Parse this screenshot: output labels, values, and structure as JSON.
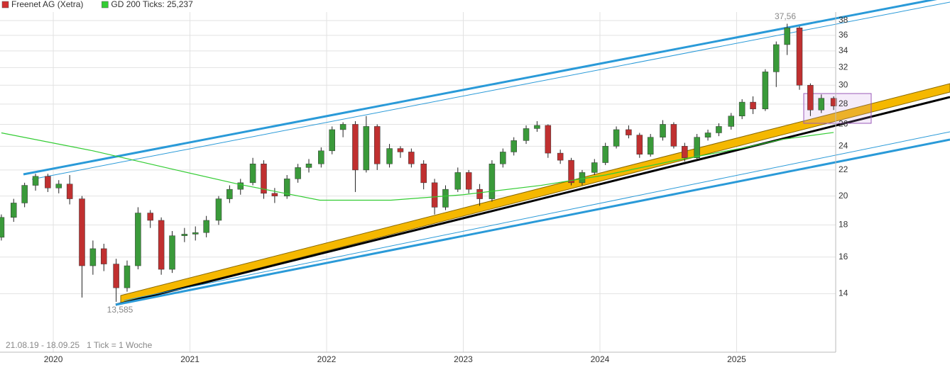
{
  "chart_data": {
    "type": "candlestick",
    "log_scale": true,
    "grid": true,
    "up_color": "#3a9a3a",
    "down_color": "#c03030",
    "wick_color": "#222222",
    "xlim": [
      2019.61,
      2025.725
    ],
    "xticks": [
      2020,
      2021,
      2022,
      2023,
      2024,
      2025
    ],
    "ylim": [
      11.3,
      39.2
    ],
    "yticks": [
      14,
      16,
      18,
      20,
      22,
      24,
      26,
      28,
      30,
      32,
      34,
      36,
      38
    ],
    "annotations": [
      "37,56",
      "13,585",
      "21.08.19 - 18.09.25   1 Tick = 1 Woche"
    ],
    "series": [
      {
        "name": "Freenet AG (Xetra)",
        "color": "#d03030",
        "x": [
          2019.62,
          2019.71,
          2019.79,
          2019.87,
          2019.96,
          2020.04,
          2020.12,
          2020.21,
          2020.29,
          2020.37,
          2020.46,
          2020.54,
          2020.62,
          2020.71,
          2020.79,
          2020.87,
          2020.96,
          2021.04,
          2021.12,
          2021.21,
          2021.29,
          2021.37,
          2021.46,
          2021.54,
          2021.62,
          2021.71,
          2021.79,
          2021.87,
          2021.96,
          2022.04,
          2022.12,
          2022.21,
          2022.29,
          2022.37,
          2022.46,
          2022.54,
          2022.62,
          2022.71,
          2022.79,
          2022.87,
          2022.96,
          2023.04,
          2023.12,
          2023.21,
          2023.29,
          2023.37,
          2023.46,
          2023.54,
          2023.62,
          2023.71,
          2023.79,
          2023.87,
          2023.96,
          2024.04,
          2024.12,
          2024.21,
          2024.29,
          2024.37,
          2024.46,
          2024.54,
          2024.62,
          2024.71,
          2024.79,
          2024.87,
          2024.96,
          2025.04,
          2025.12,
          2025.21,
          2025.29,
          2025.37,
          2025.46,
          2025.54,
          2025.62,
          2025.71
        ],
        "values": [
          [
            17.2,
            18.7,
            17.0,
            18.5
          ],
          [
            18.5,
            19.8,
            18.2,
            19.5
          ],
          [
            19.5,
            21.0,
            19.2,
            20.8
          ],
          [
            20.8,
            21.7,
            20.4,
            21.5
          ],
          [
            21.5,
            21.7,
            20.3,
            20.6
          ],
          [
            20.6,
            21.2,
            20.2,
            20.9
          ],
          [
            20.9,
            21.6,
            19.4,
            19.8
          ],
          [
            19.8,
            20.0,
            13.8,
            15.5
          ],
          [
            15.5,
            17.0,
            15.0,
            16.5
          ],
          [
            16.5,
            16.8,
            15.2,
            15.6
          ],
          [
            15.6,
            15.9,
            13.585,
            14.3
          ],
          [
            14.3,
            15.8,
            14.1,
            15.5
          ],
          [
            15.5,
            19.2,
            15.3,
            18.8
          ],
          [
            18.8,
            19.0,
            17.8,
            18.3
          ],
          [
            18.3,
            18.5,
            15.0,
            15.3
          ],
          [
            15.3,
            17.6,
            15.1,
            17.3
          ],
          [
            17.3,
            17.8,
            16.9,
            17.4
          ],
          [
            17.4,
            17.9,
            17.0,
            17.5
          ],
          [
            17.5,
            18.6,
            17.2,
            18.3
          ],
          [
            18.3,
            20.0,
            18.0,
            19.8
          ],
          [
            19.8,
            20.8,
            19.5,
            20.5
          ],
          [
            20.5,
            21.3,
            20.1,
            21.0
          ],
          [
            21.0,
            23.0,
            20.8,
            22.5
          ],
          [
            22.5,
            22.8,
            19.8,
            20.2
          ],
          [
            20.2,
            20.6,
            19.5,
            20.0
          ],
          [
            20.0,
            21.6,
            19.8,
            21.3
          ],
          [
            21.3,
            22.5,
            21.0,
            22.2
          ],
          [
            22.2,
            22.9,
            21.8,
            22.5
          ],
          [
            22.5,
            23.9,
            22.2,
            23.6
          ],
          [
            23.6,
            25.8,
            23.3,
            25.5
          ],
          [
            25.5,
            26.2,
            24.8,
            26.0
          ],
          [
            26.0,
            26.3,
            20.3,
            22.0
          ],
          [
            22.0,
            26.8,
            21.8,
            25.8
          ],
          [
            25.8,
            26.0,
            22.0,
            22.5
          ],
          [
            22.5,
            24.2,
            22.2,
            23.8
          ],
          [
            23.8,
            24.0,
            23.0,
            23.5
          ],
          [
            23.5,
            23.8,
            22.2,
            22.5
          ],
          [
            22.5,
            22.8,
            20.5,
            21.0
          ],
          [
            21.0,
            21.3,
            18.7,
            19.2
          ],
          [
            19.2,
            20.8,
            19.0,
            20.5
          ],
          [
            20.5,
            22.2,
            20.3,
            21.8
          ],
          [
            21.8,
            22.0,
            20.2,
            20.5
          ],
          [
            20.5,
            20.9,
            19.3,
            19.8
          ],
          [
            19.8,
            22.8,
            19.6,
            22.5
          ],
          [
            22.5,
            23.8,
            22.2,
            23.5
          ],
          [
            23.5,
            24.8,
            23.2,
            24.5
          ],
          [
            24.5,
            25.9,
            24.2,
            25.6
          ],
          [
            25.6,
            26.3,
            25.3,
            25.9
          ],
          [
            25.9,
            26.0,
            23.0,
            23.4
          ],
          [
            23.4,
            23.7,
            22.5,
            22.8
          ],
          [
            22.8,
            23.0,
            20.8,
            21.0
          ],
          [
            21.0,
            22.0,
            20.8,
            21.8
          ],
          [
            21.8,
            22.9,
            21.6,
            22.6
          ],
          [
            22.6,
            24.3,
            22.4,
            24.0
          ],
          [
            24.0,
            25.8,
            23.8,
            25.5
          ],
          [
            25.5,
            25.9,
            24.7,
            25.0
          ],
          [
            25.0,
            25.2,
            23.0,
            23.3
          ],
          [
            23.3,
            25.1,
            23.1,
            24.8
          ],
          [
            24.8,
            26.4,
            24.5,
            26.0
          ],
          [
            26.0,
            26.2,
            23.8,
            24.0
          ],
          [
            24.0,
            24.3,
            22.7,
            23.0
          ],
          [
            23.0,
            25.1,
            22.8,
            24.8
          ],
          [
            24.8,
            25.5,
            24.5,
            25.2
          ],
          [
            25.2,
            26.1,
            24.9,
            25.8
          ],
          [
            25.8,
            27.1,
            25.5,
            26.8
          ],
          [
            26.8,
            28.5,
            26.5,
            28.2
          ],
          [
            28.2,
            28.8,
            27.0,
            27.5
          ],
          [
            27.5,
            31.8,
            27.3,
            31.5
          ],
          [
            31.5,
            35.2,
            29.8,
            34.8
          ],
          [
            34.8,
            37.56,
            33.5,
            37.0
          ],
          [
            37.0,
            37.2,
            29.5,
            30.0
          ],
          [
            30.0,
            30.2,
            26.8,
            27.4
          ],
          [
            27.4,
            29.0,
            27.1,
            28.6
          ],
          [
            28.6,
            28.8,
            27.4,
            27.8
          ]
        ]
      },
      {
        "name": "GD 200 Ticks: 25,237",
        "color": "#33cc33",
        "type": "line",
        "x": [
          2019.62,
          2020.29,
          2020.9,
          2021.35,
          2021.95,
          2022.47,
          2023.0,
          2023.57,
          2024.04,
          2024.56,
          2025.07,
          2025.33,
          2025.71
        ],
        "values": [
          25.2,
          23.6,
          22.0,
          20.9,
          19.7,
          19.7,
          20.1,
          20.8,
          21.6,
          22.8,
          23.9,
          24.6,
          25.237
        ]
      }
    ]
  }
}
